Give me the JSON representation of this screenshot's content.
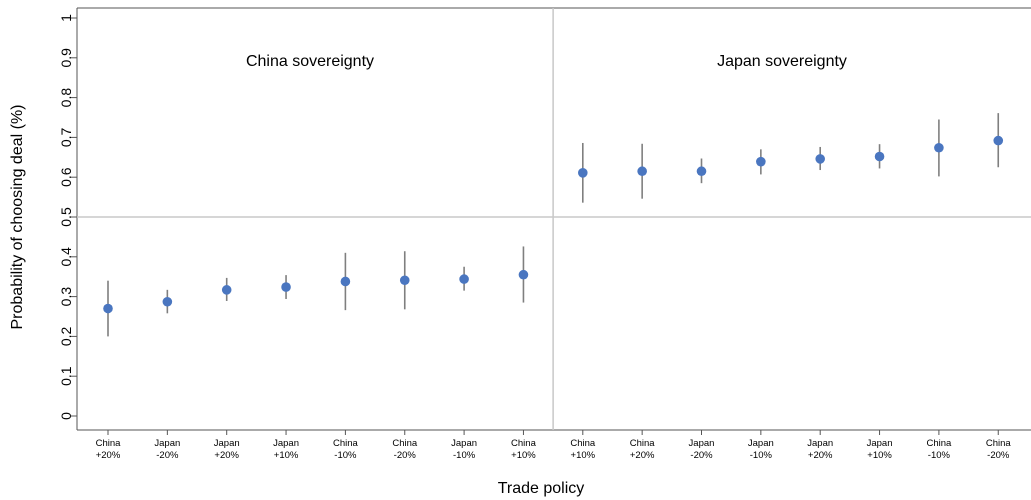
{
  "chart_data": {
    "type": "scatter",
    "subtype": "point-with-error-bars",
    "ylabel": "Probability of choosing deal (%)",
    "xlabel": "Trade policy",
    "ylim": [
      0,
      1
    ],
    "yticks": [
      "0",
      "0.1",
      "0.2",
      "0.3",
      "0.4",
      "0.5",
      "0.6",
      "0.7",
      "0.8",
      "0.9",
      "1"
    ],
    "reference_line_y": 0.5,
    "grid": false,
    "panels": [
      {
        "title": "China sovereignty",
        "points": [
          {
            "label": [
              "China",
              "+20%"
            ],
            "value": 0.27,
            "lower": 0.2,
            "upper": 0.34
          },
          {
            "label": [
              "Japan",
              "-20%"
            ],
            "value": 0.287,
            "lower": 0.258,
            "upper": 0.317
          },
          {
            "label": [
              "Japan",
              "+20%"
            ],
            "value": 0.317,
            "lower": 0.289,
            "upper": 0.347
          },
          {
            "label": [
              "Japan",
              "+10%"
            ],
            "value": 0.324,
            "lower": 0.294,
            "upper": 0.354
          },
          {
            "label": [
              "China",
              "-10%"
            ],
            "value": 0.338,
            "lower": 0.266,
            "upper": 0.41
          },
          {
            "label": [
              "China",
              "-20%"
            ],
            "value": 0.341,
            "lower": 0.268,
            "upper": 0.414
          },
          {
            "label": [
              "Japan",
              "-10%"
            ],
            "value": 0.344,
            "lower": 0.315,
            "upper": 0.375
          },
          {
            "label": [
              "China",
              "+10%"
            ],
            "value": 0.355,
            "lower": 0.285,
            "upper": 0.426
          }
        ]
      },
      {
        "title": "Japan sovereignty",
        "points": [
          {
            "label": [
              "China",
              "+10%"
            ],
            "value": 0.611,
            "lower": 0.536,
            "upper": 0.686
          },
          {
            "label": [
              "China",
              "+20%"
            ],
            "value": 0.615,
            "lower": 0.546,
            "upper": 0.684
          },
          {
            "label": [
              "Japan",
              "-20%"
            ],
            "value": 0.615,
            "lower": 0.585,
            "upper": 0.647
          },
          {
            "label": [
              "Japan",
              "-10%"
            ],
            "value": 0.639,
            "lower": 0.607,
            "upper": 0.67
          },
          {
            "label": [
              "Japan",
              "+20%"
            ],
            "value": 0.646,
            "lower": 0.618,
            "upper": 0.676
          },
          {
            "label": [
              "Japan",
              "+10%"
            ],
            "value": 0.652,
            "lower": 0.622,
            "upper": 0.683
          },
          {
            "label": [
              "China",
              "-10%"
            ],
            "value": 0.674,
            "lower": 0.602,
            "upper": 0.745
          },
          {
            "label": [
              "China",
              "-20%"
            ],
            "value": 0.692,
            "lower": 0.625,
            "upper": 0.761
          }
        ]
      }
    ]
  },
  "colors": {
    "point": "#4a76c0",
    "error_bar": "#7f7f7f",
    "frame": "#555555",
    "divider": "#c8c8c8",
    "text": "#000000"
  }
}
